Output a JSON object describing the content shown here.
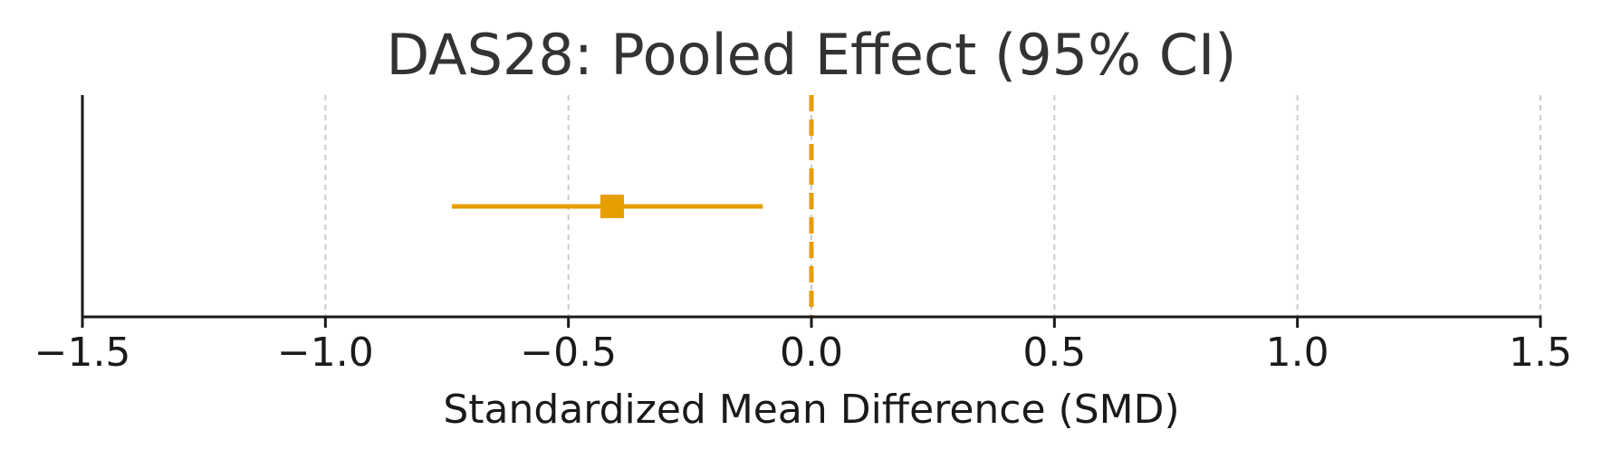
{
  "chart_data": {
    "type": "forest",
    "title": "DAS28: Pooled Effect (95% CI)",
    "xlabel": "Standardized Mean Difference (SMD)",
    "ylabel": "",
    "xlim": [
      -1.5,
      1.5
    ],
    "xticks": [
      -1.5,
      -1.0,
      -0.5,
      0.0,
      0.5,
      1.0,
      1.5
    ],
    "xtick_labels": [
      "−1.5",
      "−1.0",
      "−0.5",
      "0.0",
      "0.5",
      "1.0",
      "1.5"
    ],
    "grid": "vertical dashed",
    "reference_line": 0.0,
    "series": [
      {
        "estimate": -0.41,
        "ci_lower": -0.74,
        "ci_upper": -0.1
      }
    ],
    "colors": {
      "marker": "#E69F00",
      "reference": "#E69F00",
      "grid": "#cccccc",
      "axis": "#1a1a1a",
      "title": "#333333"
    }
  }
}
